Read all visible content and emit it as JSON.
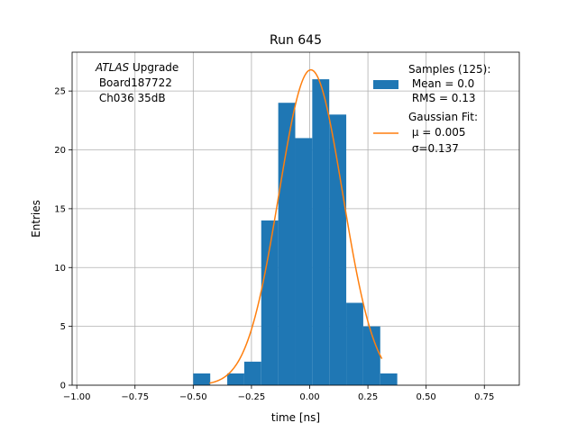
{
  "chart_data": {
    "type": "bar",
    "title": "Run 645",
    "xlabel": "time [ns]",
    "ylabel": "Entries",
    "xlim": [
      -1.02,
      0.9
    ],
    "ylim": [
      0,
      28.3
    ],
    "grid": true,
    "x_ticks": [
      -1.0,
      -0.75,
      -0.5,
      -0.25,
      0.0,
      0.25,
      0.5,
      0.75
    ],
    "x_tick_labels": [
      "−1.00",
      "−0.75",
      "−0.50",
      "−0.25",
      "0.00",
      "0.25",
      "0.50",
      "0.75"
    ],
    "y_ticks": [
      0,
      5,
      10,
      15,
      20,
      25
    ],
    "y_tick_labels": [
      "0",
      "5",
      "10",
      "15",
      "20",
      "25"
    ],
    "bin_edges": [
      -0.5,
      -0.427,
      -0.354,
      -0.281,
      -0.208,
      -0.135,
      -0.062,
      0.011,
      0.084,
      0.157,
      0.23,
      0.303,
      0.376
    ],
    "counts": [
      1,
      0,
      1,
      2,
      14,
      24,
      21,
      26,
      23,
      7,
      5,
      1
    ],
    "bar_color": "#1f77b4",
    "fit": {
      "color": "#ff7f0e",
      "amplitude": 26.8,
      "mu": 0.005,
      "sigma": 0.137,
      "x_range": [
        -0.43,
        0.31
      ]
    },
    "legend": {
      "placement": "top-right",
      "hist_lines": [
        "Samples (125):",
        " Mean = 0.0",
        " RMS = 0.13"
      ],
      "fit_lines": [
        "Gaussian Fit:",
        " μ = 0.005",
        " σ=0.137"
      ]
    },
    "annotation": {
      "atlas": "ATLAS",
      "upgrade": " Upgrade",
      "line2": " Board187722",
      "line3": " Ch036 35dB"
    }
  }
}
